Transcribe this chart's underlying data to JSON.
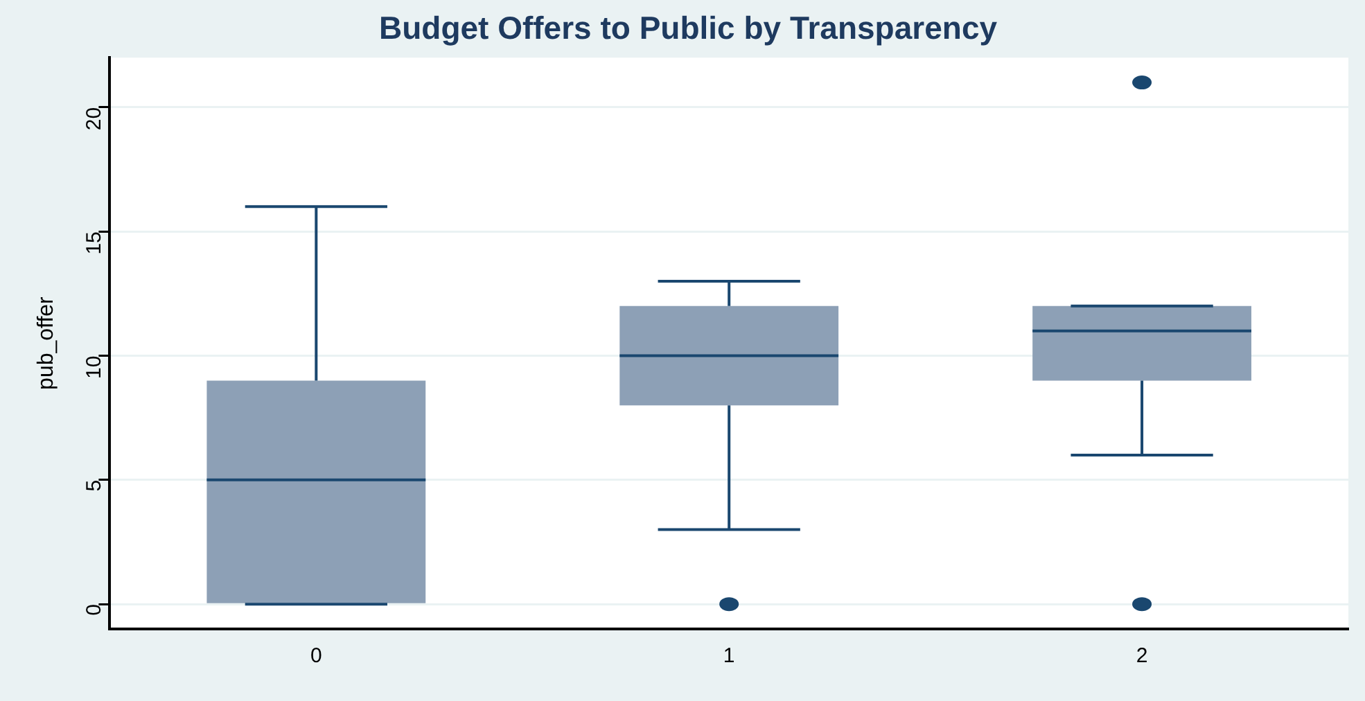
{
  "chart_data": {
    "type": "box",
    "title": "Budget Offers to Public by Transparency",
    "ylabel": "pub_offer",
    "categories": [
      "0",
      "1",
      "2"
    ],
    "color": "#8da0b6",
    "ylim": [
      -1,
      22
    ],
    "yticks": [
      0,
      5,
      10,
      15,
      20
    ],
    "grid": "y",
    "legend": false,
    "boxes": [
      {
        "low": 0,
        "q1": 0,
        "median": 5,
        "q3": 9,
        "high": 16
      },
      {
        "low": 3,
        "q1": 8,
        "median": 10,
        "q3": 12,
        "high": 13,
        "outliers": [
          0
        ]
      },
      {
        "low": 6,
        "q1": 9,
        "median": 11,
        "q3": 12,
        "high": 12,
        "outliers": [
          0,
          21
        ]
      }
    ]
  }
}
